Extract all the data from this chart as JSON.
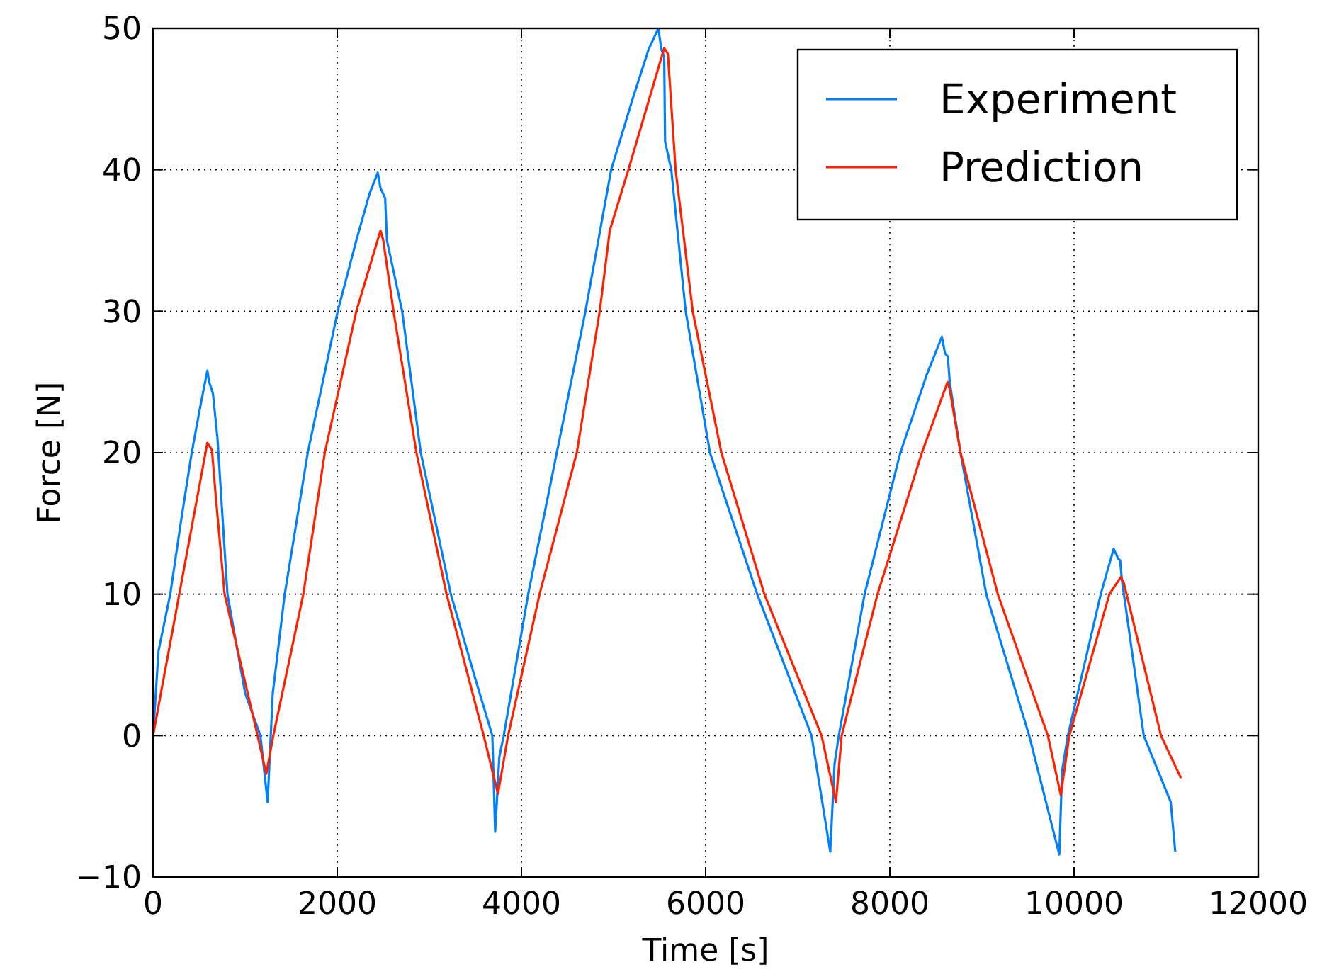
{
  "chart_data": {
    "type": "line",
    "xlabel": "Time [s]",
    "ylabel": "Force [N]",
    "xlim": [
      0,
      12000
    ],
    "ylim": [
      -10,
      50
    ],
    "xticks": [
      0,
      2000,
      4000,
      6000,
      8000,
      10000,
      12000
    ],
    "yticks": [
      {
        "value": -10,
        "label": "−10"
      },
      0,
      10,
      20,
      30,
      40,
      50
    ],
    "grid": true,
    "legend": "top right",
    "line_style": "solid",
    "marker": "none",
    "series": [
      {
        "name": "Experiment",
        "color": "#0080ff",
        "x": [
          0,
          60,
          187,
          300,
          420,
          520,
          590,
          610,
          650,
          700,
          808,
          1000,
          1166,
          1244,
          1300,
          1430,
          1680,
          2005,
          2207,
          2350,
          2440,
          2470,
          2520,
          2540,
          2705,
          2907,
          3233,
          3500,
          3684,
          3715,
          3760,
          3808,
          4073,
          4384,
          4695,
          4974,
          5207,
          5380,
          5487,
          5520,
          5550,
          5560,
          5627,
          5783,
          6047,
          6560,
          7150,
          7353,
          7400,
          7446,
          7726,
          8114,
          8400,
          8565,
          8600,
          8630,
          8650,
          8767,
          9047,
          9513,
          9840,
          9870,
          9933,
          10290,
          10430,
          10480,
          10500,
          10520,
          10757,
          11050,
          11099
        ],
        "values": [
          0,
          6,
          10,
          15,
          20,
          23.5,
          25.8,
          25,
          24.2,
          21,
          10,
          3,
          0,
          -4.7,
          3,
          10,
          20,
          30,
          35,
          38.3,
          39.8,
          38.7,
          38,
          35,
          30,
          20,
          10,
          4,
          0,
          -6.8,
          -1.5,
          0,
          10,
          20,
          30,
          40,
          45,
          48.5,
          50,
          48.5,
          48,
          42,
          40,
          30,
          20,
          10,
          0,
          -8.2,
          -2,
          0,
          10,
          20,
          25.5,
          28.2,
          27,
          26.8,
          25,
          20,
          10,
          0,
          -8.4,
          -2.5,
          0,
          10,
          13.2,
          12.5,
          12.4,
          11,
          0,
          -4.7,
          -8.2
        ]
      },
      {
        "name": "Prediction",
        "color": "#ff2000",
        "x": [
          0,
          590,
          640,
          680,
          777,
          1135,
          1230,
          1306,
          1632,
          1865,
          2207,
          2470,
          2500,
          2611,
          2860,
          3187,
          3590,
          3745,
          3855,
          4197,
          4601,
          4850,
          4959,
          5161,
          5550,
          5590,
          5674,
          5860,
          6171,
          6638,
          7259,
          7415,
          7477,
          7866,
          8348,
          8627,
          8650,
          8767,
          9172,
          9716,
          9856,
          9949,
          10384,
          10508,
          10540,
          10944,
          11161
        ],
        "values": [
          0,
          20.7,
          20.2,
          17,
          10,
          0,
          -2.7,
          0,
          10,
          20,
          30,
          35.7,
          35,
          30,
          20,
          10,
          0,
          -4.1,
          0,
          10,
          20,
          30,
          35.7,
          40,
          48.6,
          48.2,
          40,
          30,
          20,
          10,
          0,
          -4.7,
          0,
          10,
          20,
          25,
          24.5,
          20,
          10,
          0,
          -4.2,
          0,
          10,
          11.2,
          10.8,
          0,
          -3
        ]
      }
    ]
  }
}
